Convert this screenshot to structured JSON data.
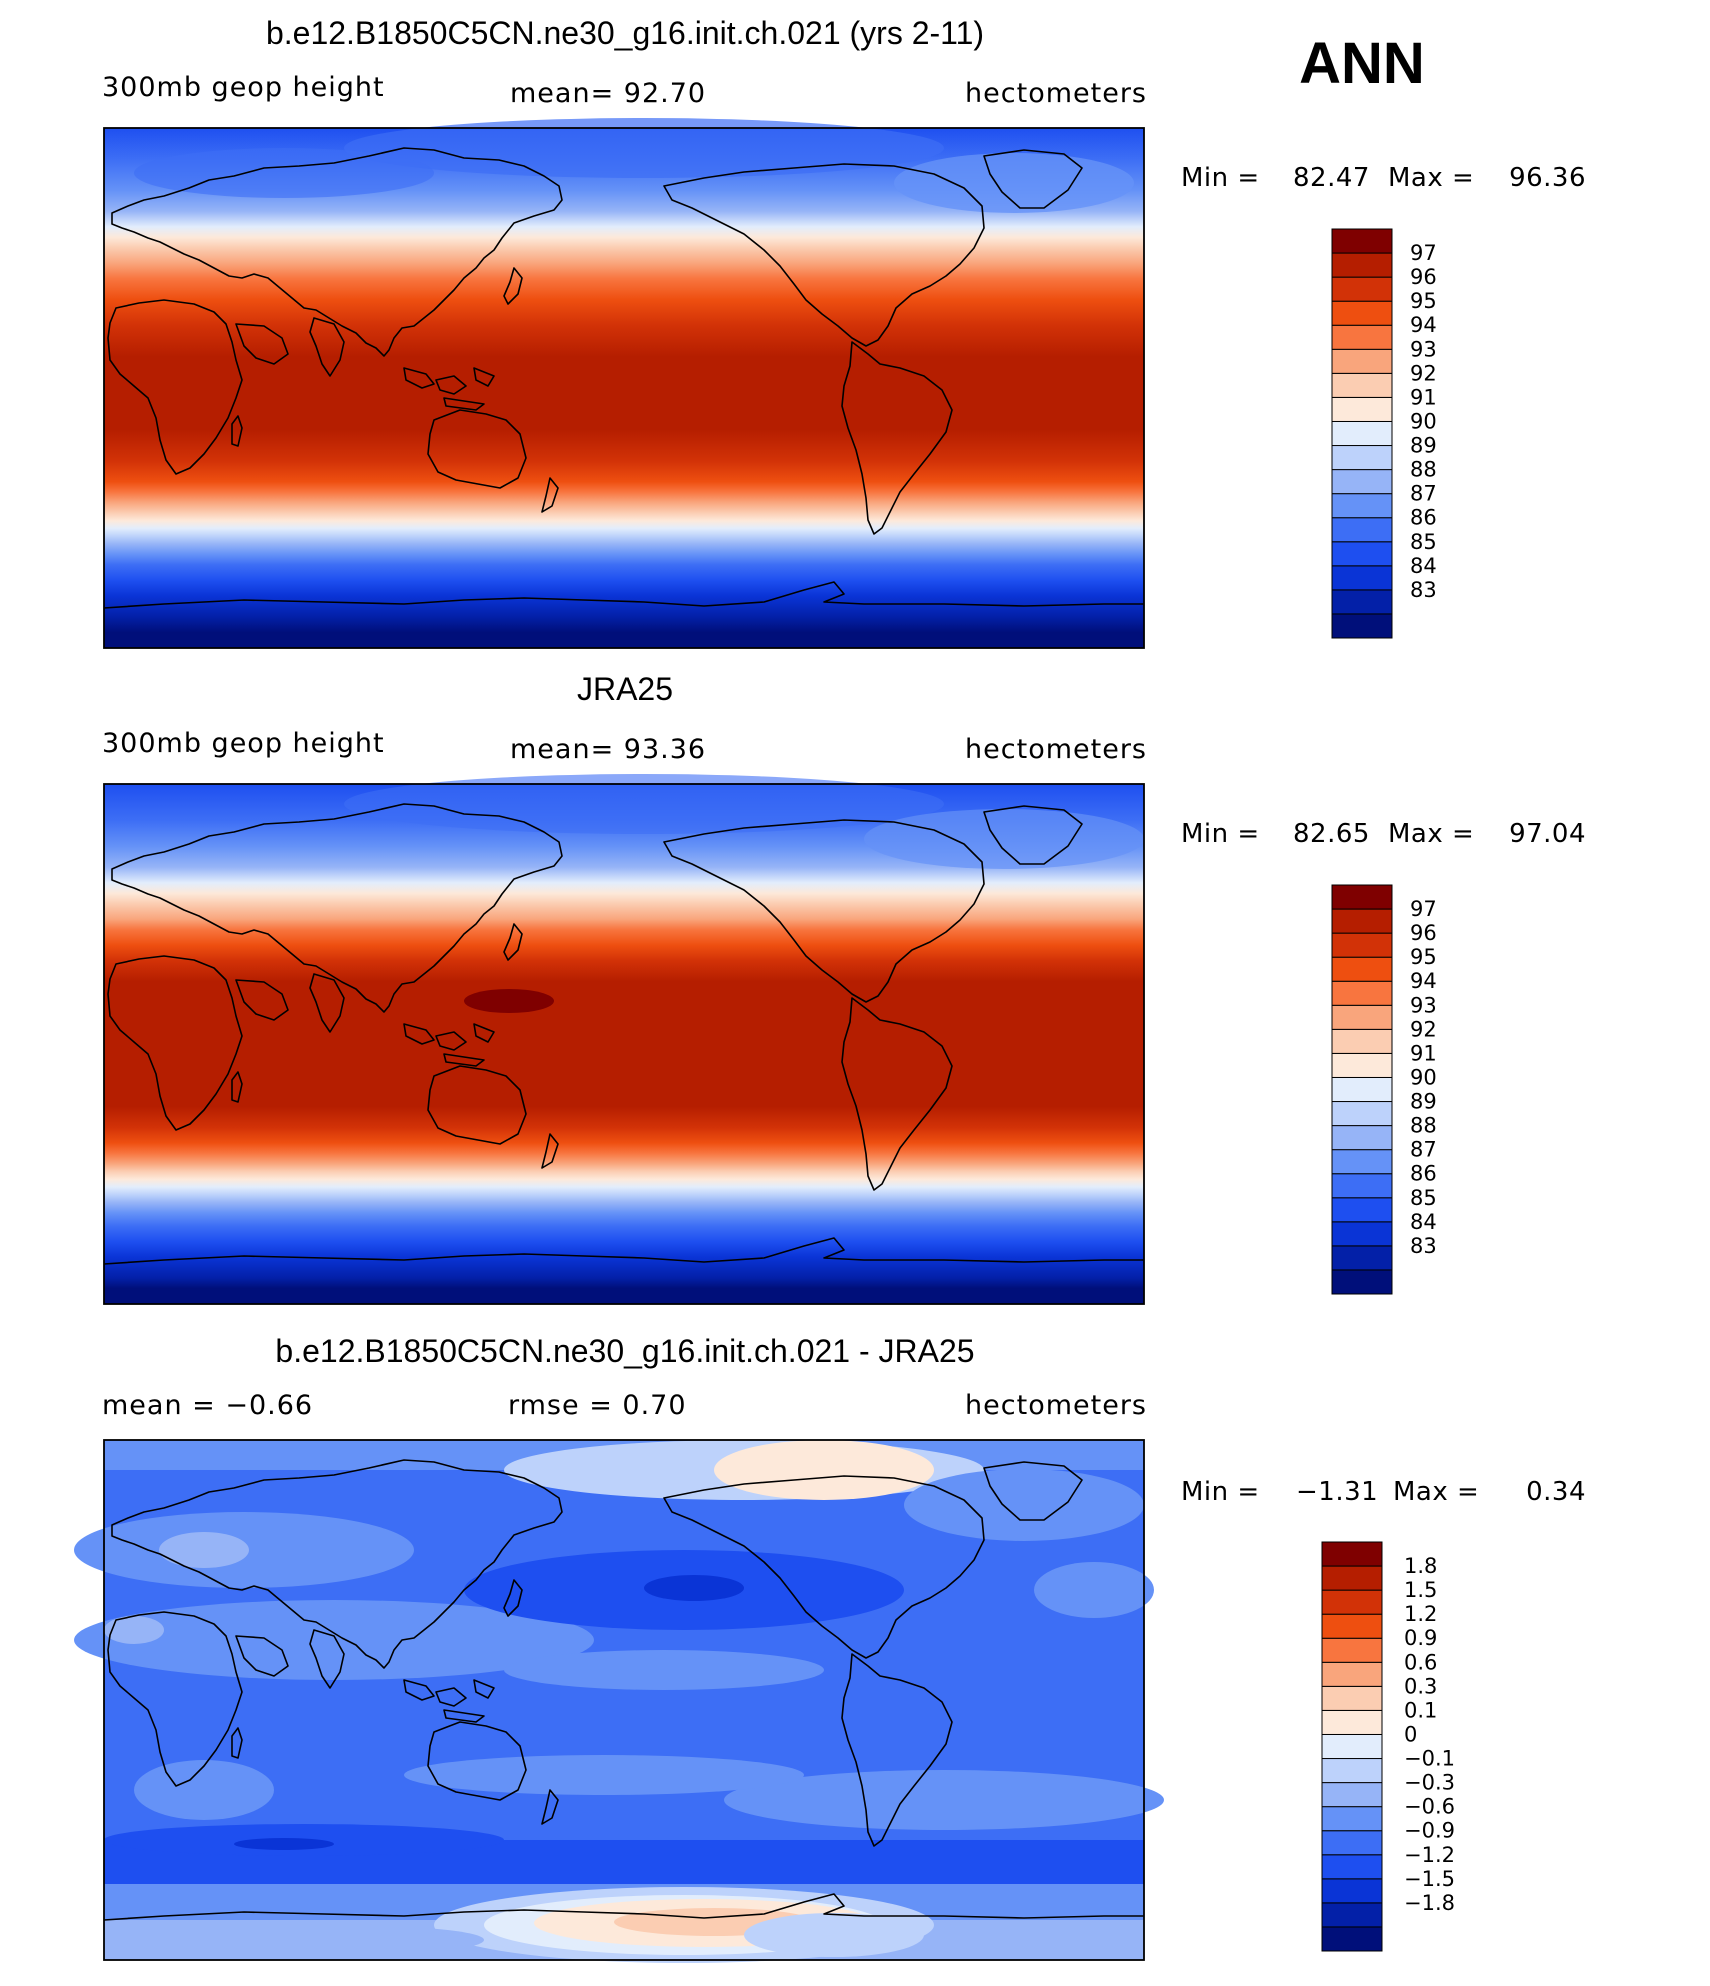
{
  "season_label": "ANN",
  "colors": {
    "abs_scale": [
      "#000f7a",
      "#0320a8",
      "#0a34d6",
      "#1e4ff0",
      "#3d6ef5",
      "#6592f7",
      "#96b4f7",
      "#bdd2fb",
      "#e2edfc",
      "#fde9da",
      "#fbcdb2",
      "#f9a57c",
      "#f8753f",
      "#ee4f10",
      "#d23207",
      "#b51e00",
      "#7f0000"
    ],
    "diff_scale": [
      "#000f7a",
      "#0320a8",
      "#0a34d6",
      "#1e4ff0",
      "#3d6ef5",
      "#6592f7",
      "#96b4f7",
      "#bdd2fb",
      "#e2edfc",
      "#fde9da",
      "#fbcdb2",
      "#f9a57c",
      "#f8753f",
      "#ee4f10",
      "#d23207",
      "#b51e00",
      "#7f0000"
    ]
  },
  "panels": [
    {
      "title": "b.e12.B1850C5CN.ne30_g16.init.ch.021 (yrs 2-11)",
      "left_label": "300mb geop height",
      "center_label": "mean=  92.70",
      "units": "hectometers",
      "min_text": "Min =",
      "min_value": "82.47",
      "max_text": "Max =",
      "max_value": "96.36",
      "levels": [
        "97",
        "96",
        "95",
        "94",
        "93",
        "92",
        "91",
        "90",
        "89",
        "88",
        "87",
        "86",
        "85",
        "84",
        "83"
      ]
    },
    {
      "title": "JRA25",
      "left_label": "300mb geop height",
      "center_label": "mean=  93.36",
      "units": "hectometers",
      "min_text": "Min =",
      "min_value": "82.65",
      "max_text": "Max =",
      "max_value": "97.04",
      "levels": [
        "97",
        "96",
        "95",
        "94",
        "93",
        "92",
        "91",
        "90",
        "89",
        "88",
        "87",
        "86",
        "85",
        "84",
        "83"
      ]
    },
    {
      "title": "b.e12.B1850C5CN.ne30_g16.init.ch.021 - JRA25",
      "left_label": "mean =   −0.66",
      "center_label": "rmse =    0.70",
      "units": "hectometers",
      "min_text": "Min =",
      "min_value": "−1.31",
      "max_text": "Max =",
      "max_value": "0.34",
      "levels": [
        "1.8",
        "1.5",
        "1.2",
        "0.9",
        "0.6",
        "0.3",
        "0.1",
        "0",
        "−0.1",
        "−0.3",
        "−0.6",
        "−0.9",
        "−1.2",
        "−1.5",
        "−1.8"
      ]
    }
  ]
}
